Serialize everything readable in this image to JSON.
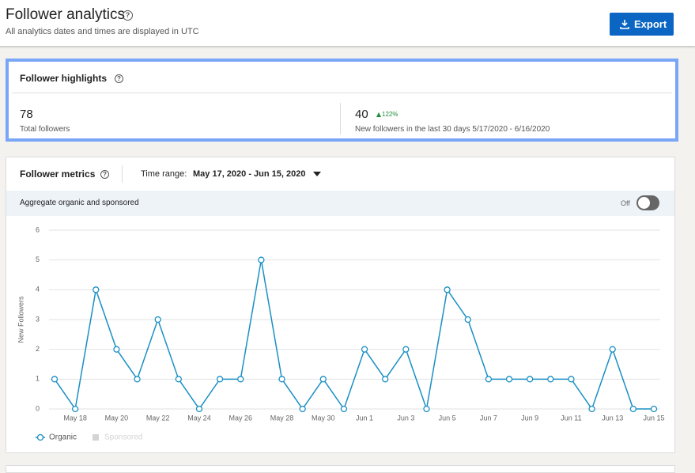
{
  "header": {
    "title": "Follower analytics",
    "subtitle": "All analytics dates and times are displayed in UTC",
    "export": "Export"
  },
  "highlights": {
    "title": "Follower highlights",
    "total": {
      "value": "78",
      "label": "Total followers"
    },
    "new": {
      "value": "40",
      "change": "122%",
      "label": "New followers in the last 30 days 5/17/2020 - 6/16/2020"
    }
  },
  "metrics": {
    "title": "Follower metrics",
    "time_range_label": "Time range:",
    "time_range": "May 17, 2020 - Jun 15, 2020",
    "aggregate_label": "Aggregate organic and sponsored",
    "toggle": "Off"
  },
  "chart_data": {
    "type": "line",
    "ylabel": "New Followers",
    "categories": [
      null,
      "May 18",
      null,
      "May 20",
      null,
      "May 22",
      null,
      "May 24",
      null,
      "May 26",
      null,
      "May 28",
      null,
      "May 30",
      null,
      "Jun 1",
      null,
      "Jun 3",
      null,
      "Jun 5",
      null,
      "Jun 7",
      null,
      "Jun 9",
      null,
      "Jun 11",
      null,
      "Jun 13",
      null,
      "Jun 15"
    ],
    "series": [
      {
        "name": "Organic",
        "color": "#1a8fc4",
        "values": [
          1,
          0,
          4,
          2,
          1,
          3,
          1,
          0,
          1,
          1,
          5,
          1,
          0,
          1,
          0,
          2,
          1,
          2,
          0,
          4,
          3,
          1,
          1,
          1,
          1,
          1,
          0,
          2,
          0,
          0
        ]
      }
    ],
    "disabled_legend": {
      "name": "Sponsored",
      "color": "#d4d4d4"
    },
    "ylim": [
      0,
      6
    ],
    "yticks": [
      0,
      1,
      2,
      3,
      4,
      5,
      6
    ],
    "grid": true
  }
}
